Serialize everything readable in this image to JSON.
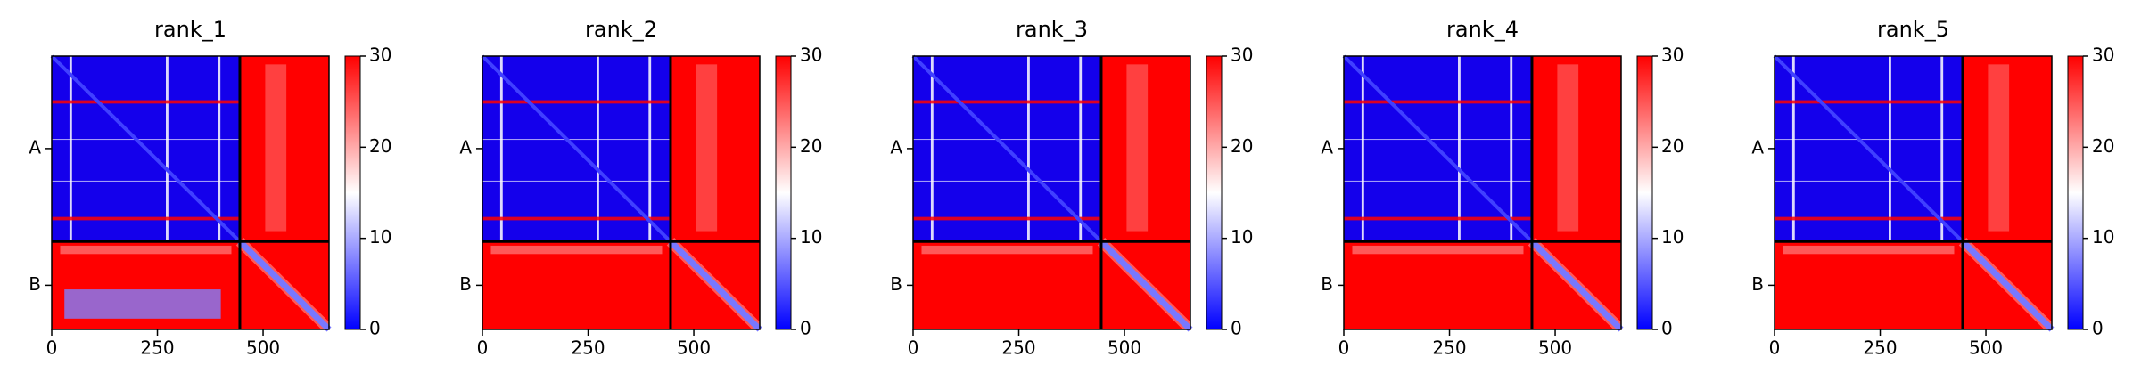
{
  "chart_data": [
    {
      "type": "heatmap",
      "title": "rank_1",
      "xlim": [
        0,
        656
      ],
      "xticks": [
        0,
        250,
        500
      ],
      "ylim": [
        0,
        656
      ],
      "yticks": [
        {
          "value": 222,
          "label": "A"
        },
        {
          "value": 550,
          "label": "B"
        }
      ],
      "chain_breaks": [
        445
      ],
      "cmap": [
        "#0000ff",
        "#ffffff",
        "#ff0000"
      ],
      "clim": [
        0,
        30
      ],
      "cticks": [
        0,
        10,
        20,
        30
      ]
    },
    {
      "type": "heatmap",
      "title": "rank_2",
      "xlim": [
        0,
        656
      ],
      "xticks": [
        0,
        250,
        500
      ],
      "ylim": [
        0,
        656
      ],
      "yticks": [
        {
          "value": 222,
          "label": "A"
        },
        {
          "value": 550,
          "label": "B"
        }
      ],
      "chain_breaks": [
        445
      ],
      "cmap": [
        "#0000ff",
        "#ffffff",
        "#ff0000"
      ],
      "clim": [
        0,
        30
      ],
      "cticks": [
        0,
        10,
        20,
        30
      ]
    },
    {
      "type": "heatmap",
      "title": "rank_3",
      "xlim": [
        0,
        656
      ],
      "xticks": [
        0,
        250,
        500
      ],
      "ylim": [
        0,
        656
      ],
      "yticks": [
        {
          "value": 222,
          "label": "A"
        },
        {
          "value": 550,
          "label": "B"
        }
      ],
      "chain_breaks": [
        445
      ],
      "cmap": [
        "#0000ff",
        "#ffffff",
        "#ff0000"
      ],
      "clim": [
        0,
        30
      ],
      "cticks": [
        0,
        10,
        20,
        30
      ]
    },
    {
      "type": "heatmap",
      "title": "rank_4",
      "xlim": [
        0,
        656
      ],
      "xticks": [
        0,
        250,
        500
      ],
      "ylim": [
        0,
        656
      ],
      "yticks": [
        {
          "value": 222,
          "label": "A"
        },
        {
          "value": 550,
          "label": "B"
        }
      ],
      "chain_breaks": [
        445
      ],
      "cmap": [
        "#0000ff",
        "#ffffff",
        "#ff0000"
      ],
      "clim": [
        0,
        30
      ],
      "cticks": [
        0,
        10,
        20,
        30
      ]
    },
    {
      "type": "heatmap",
      "title": "rank_5",
      "xlim": [
        0,
        656
      ],
      "xticks": [
        0,
        250,
        500
      ],
      "ylim": [
        0,
        656
      ],
      "yticks": [
        {
          "value": 222,
          "label": "A"
        },
        {
          "value": 550,
          "label": "B"
        }
      ],
      "chain_breaks": [
        445
      ],
      "cmap": [
        "#0000ff",
        "#ffffff",
        "#ff0000"
      ],
      "clim": [
        0,
        30
      ],
      "cticks": [
        0,
        10,
        20,
        30
      ]
    }
  ]
}
